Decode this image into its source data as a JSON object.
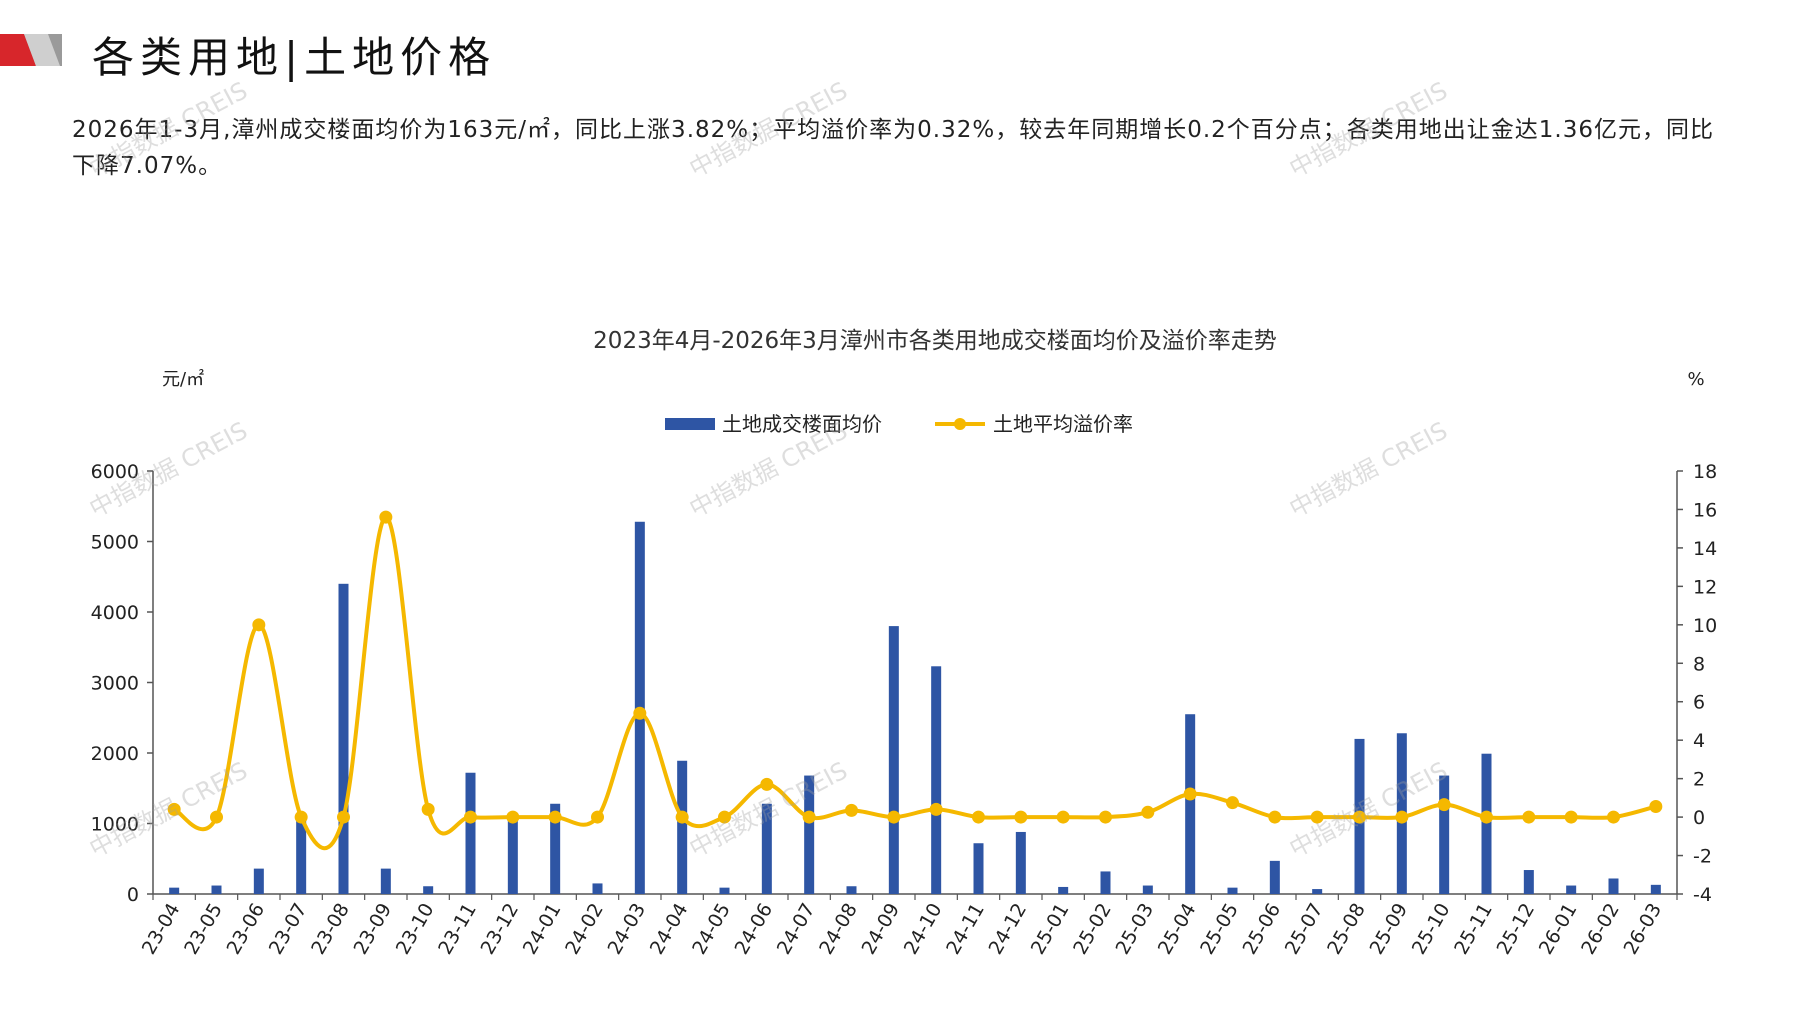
{
  "header": {
    "title": "各类用地|土地价格"
  },
  "summary": {
    "text": "2026年1-3月,漳州成交楼面均价为163元/㎡，同比上涨3.82%；平均溢价率为0.32%，较去年同期增长0.2个百分点；各类用地出让金达1.36亿元，同比下降7.07%。"
  },
  "watermark": {
    "text": "中指数据 CREIS"
  },
  "colors": {
    "brand_red": "#d7262b",
    "bar": "#2e55a4",
    "line": "#f5b800"
  },
  "chart_data": {
    "type": "bar+line",
    "title": "2023年4月-2026年3月漳州市各类用地成交楼面均价及溢价率走势",
    "y_left_unit": "元/㎡",
    "y_right_unit": "%",
    "ylim_left": [
      0,
      6000
    ],
    "yticks_left": [
      0,
      1000,
      2000,
      3000,
      4000,
      5000,
      6000
    ],
    "ylim_right": [
      -4,
      18
    ],
    "yticks_right": [
      -4,
      -2,
      0,
      2,
      4,
      6,
      8,
      10,
      12,
      14,
      16,
      18
    ],
    "legend_position": "top-center",
    "grid": false,
    "categories": [
      "23-04",
      "23-05",
      "23-06",
      "23-07",
      "23-08",
      "23-09",
      "23-10",
      "23-11",
      "23-12",
      "24-01",
      "24-02",
      "24-03",
      "24-04",
      "24-05",
      "24-06",
      "24-07",
      "24-08",
      "24-09",
      "24-10",
      "24-11",
      "24-12",
      "25-01",
      "25-02",
      "25-03",
      "25-04",
      "25-05",
      "25-06",
      "25-07",
      "25-08",
      "25-09",
      "25-10",
      "25-11",
      "25-12",
      "26-01",
      "26-02",
      "26-03"
    ],
    "series": [
      {
        "name": "土地成交楼面均价",
        "type": "bar",
        "axis": "left",
        "values": [
          90,
          120,
          360,
          1100,
          4400,
          360,
          110,
          1720,
          1100,
          1280,
          150,
          5280,
          1890,
          90,
          1280,
          1680,
          110,
          3800,
          3230,
          720,
          880,
          100,
          320,
          120,
          2550,
          90,
          470,
          70,
          2200,
          2280,
          1680,
          1990,
          340,
          120,
          220,
          130
        ]
      },
      {
        "name": "土地平均溢价率",
        "type": "line",
        "axis": "right",
        "values": [
          0.4,
          0.0,
          10.0,
          0.0,
          0.0,
          15.6,
          0.4,
          0.0,
          0.0,
          0.0,
          0.0,
          5.4,
          0.0,
          0.0,
          1.7,
          0.0,
          0.35,
          0.0,
          0.4,
          0.0,
          0.0,
          0.0,
          0.0,
          0.25,
          1.2,
          0.75,
          0.0,
          0.0,
          0.0,
          0.0,
          0.65,
          0.0,
          0.0,
          0.0,
          0.0,
          0.55
        ]
      }
    ]
  }
}
